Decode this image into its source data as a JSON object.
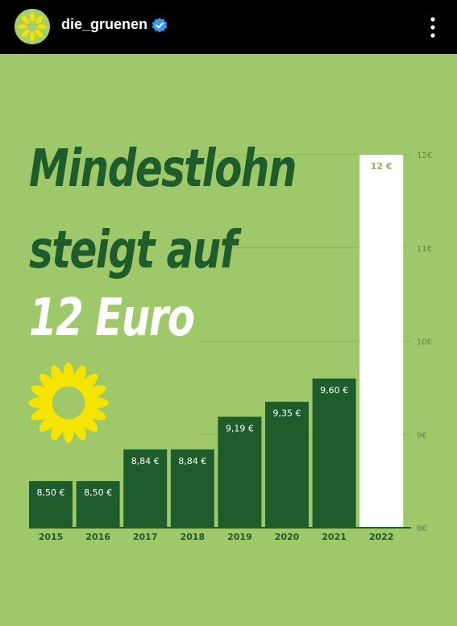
{
  "header": {
    "username": "die_gruenen",
    "avatar_icon": "sunflower-icon",
    "verified_icon": "verified-badge-icon",
    "menu_icon": "more-vertical-icon"
  },
  "post": {
    "headline_line1": "Mindestlohn",
    "headline_line2": "steigt auf",
    "headline_line3": "12 Euro",
    "logo_icon": "sunflower-logo-icon"
  },
  "colors": {
    "background": "#9fc86a",
    "bar": "#1e5c2c",
    "highlight_bar": "#ffffff",
    "headline_dark": "#1e5c2c",
    "headline_light": "#ffffff",
    "topbar": "#000000"
  },
  "chart_data": {
    "type": "bar",
    "categories": [
      "2015",
      "2016",
      "2017",
      "2018",
      "2019",
      "2020",
      "2021",
      "2022"
    ],
    "values": [
      8.5,
      8.5,
      8.84,
      8.84,
      9.19,
      9.35,
      9.6,
      12
    ],
    "value_labels": [
      "8,50 €",
      "8,50 €",
      "8,84 €",
      "8,84 €",
      "9,19 €",
      "9,35 €",
      "9,60 €",
      "12 €"
    ],
    "y_ticks": [
      8,
      9,
      10,
      11,
      12
    ],
    "y_tick_labels": [
      "8€",
      "9€",
      "10€",
      "11€",
      "12€"
    ],
    "ylim": [
      8,
      12
    ],
    "grid": true,
    "highlight_category": "2022",
    "title": "",
    "xlabel": "",
    "ylabel": ""
  }
}
